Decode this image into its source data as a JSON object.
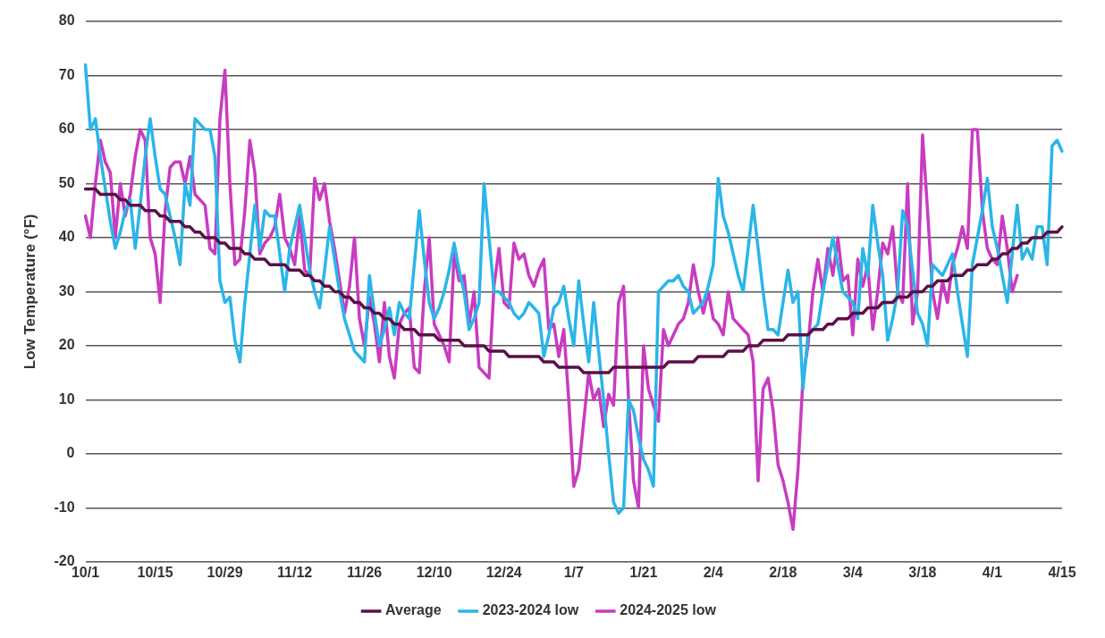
{
  "chart_data": {
    "type": "line",
    "ylabel": "Low Temperature (°F)",
    "categories": [
      "10/1",
      null,
      null,
      null,
      null,
      null,
      null,
      null,
      null,
      null,
      null,
      null,
      null,
      null,
      "10/15",
      null,
      null,
      null,
      null,
      null,
      null,
      null,
      null,
      null,
      null,
      null,
      null,
      null,
      "10/29",
      null,
      null,
      null,
      null,
      null,
      null,
      null,
      null,
      null,
      null,
      null,
      null,
      null,
      "11/12",
      null,
      null,
      null,
      null,
      null,
      null,
      null,
      null,
      null,
      null,
      null,
      null,
      null,
      "11/26",
      null,
      null,
      null,
      null,
      null,
      null,
      null,
      null,
      null,
      null,
      null,
      null,
      null,
      "12/10",
      null,
      null,
      null,
      null,
      null,
      null,
      null,
      null,
      null,
      null,
      null,
      null,
      null,
      "12/24",
      null,
      null,
      null,
      null,
      null,
      null,
      null,
      null,
      null,
      null,
      null,
      null,
      null,
      "1/7",
      null,
      null,
      null,
      null,
      null,
      null,
      null,
      null,
      null,
      null,
      null,
      null,
      null,
      "1/21",
      null,
      null,
      null,
      null,
      null,
      null,
      null,
      null,
      null,
      null,
      null,
      null,
      null,
      "2/4",
      null,
      null,
      null,
      null,
      null,
      null,
      null,
      null,
      null,
      null,
      null,
      null,
      null,
      "2/18",
      null,
      null,
      null,
      null,
      null,
      null,
      null,
      null,
      null,
      null,
      null,
      null,
      null,
      "3/4",
      null,
      null,
      null,
      null,
      null,
      null,
      null,
      null,
      null,
      null,
      null,
      null,
      null,
      "3/18",
      null,
      null,
      null,
      null,
      null,
      null,
      null,
      null,
      null,
      null,
      null,
      null,
      null,
      "4/1",
      null,
      null,
      null,
      null,
      null,
      null,
      null,
      null,
      null,
      null,
      null,
      null,
      null,
      "4/15"
    ],
    "ylim": [
      -20,
      80
    ],
    "yticks": [
      -20,
      -10,
      0,
      10,
      20,
      30,
      40,
      50,
      60,
      70,
      80
    ],
    "grid": "y",
    "legend": "bottom",
    "marker": "none",
    "line_style": "solid",
    "series": [
      {
        "name": "Average",
        "color": "#5b1047",
        "values": [
          49,
          49,
          49,
          48,
          48,
          48,
          48,
          47,
          47,
          46,
          46,
          46,
          45,
          45,
          45,
          44,
          44,
          43,
          43,
          43,
          42,
          42,
          41,
          41,
          40,
          40,
          40,
          39,
          39,
          38,
          38,
          38,
          37,
          37,
          36,
          36,
          36,
          35,
          35,
          35,
          35,
          34,
          34,
          34,
          33,
          33,
          32,
          32,
          31,
          31,
          30,
          30,
          29,
          29,
          28,
          28,
          27,
          27,
          26,
          26,
          25,
          25,
          24,
          24,
          23,
          23,
          23,
          22,
          22,
          22,
          22,
          21,
          21,
          21,
          21,
          21,
          20,
          20,
          20,
          20,
          20,
          19,
          19,
          19,
          19,
          18,
          18,
          18,
          18,
          18,
          18,
          18,
          17,
          17,
          17,
          16,
          16,
          16,
          16,
          16,
          15,
          15,
          15,
          15,
          15,
          15,
          16,
          16,
          16,
          16,
          16,
          16,
          16,
          16,
          16,
          16,
          16,
          17,
          17,
          17,
          17,
          17,
          17,
          18,
          18,
          18,
          18,
          18,
          18,
          19,
          19,
          19,
          19,
          20,
          20,
          20,
          21,
          21,
          21,
          21,
          21,
          22,
          22,
          22,
          22,
          22,
          23,
          23,
          23,
          24,
          24,
          25,
          25,
          25,
          26,
          26,
          26,
          27,
          27,
          27,
          28,
          28,
          28,
          29,
          29,
          29,
          30,
          30,
          30,
          31,
          31,
          32,
          32,
          32,
          33,
          33,
          33,
          34,
          34,
          35,
          35,
          35,
          36,
          36,
          37,
          37,
          38,
          38,
          39,
          39,
          40,
          40,
          40,
          41,
          41,
          41,
          42
        ]
      },
      {
        "name": "2023-2024 low",
        "color": "#2bb5e8",
        "values": [
          72,
          60,
          62,
          55,
          49,
          43,
          38,
          41,
          45,
          47,
          38,
          46,
          55,
          62,
          55,
          49,
          48,
          44,
          40,
          35,
          50,
          46,
          62,
          61,
          60,
          60,
          55,
          32,
          28,
          29,
          21,
          17,
          28,
          37,
          46,
          38,
          45,
          44,
          44,
          37,
          30,
          38,
          42,
          46,
          40,
          34,
          30,
          27,
          34,
          42,
          36,
          30,
          25,
          22,
          19,
          18,
          17,
          33,
          26,
          20,
          23,
          27,
          22,
          28,
          26,
          25,
          35,
          45,
          36,
          28,
          25,
          27,
          30,
          34,
          39,
          34,
          30,
          23,
          25,
          28,
          50,
          40,
          30,
          30,
          29,
          28,
          26,
          25,
          26,
          28,
          27,
          26,
          18,
          22,
          27,
          28,
          31,
          25,
          20,
          32,
          24,
          17,
          28,
          19,
          10,
          0,
          -9,
          -11,
          -10,
          10,
          8,
          3,
          -1,
          -3,
          -6,
          30,
          31,
          32,
          32,
          33,
          31,
          30,
          26,
          27,
          28,
          31,
          35,
          51,
          44,
          41,
          37,
          33,
          30,
          38,
          46,
          38,
          30,
          23,
          23,
          22,
          28,
          34,
          28,
          30,
          12,
          22,
          23,
          24,
          30,
          35,
          40,
          35,
          30,
          29,
          28,
          25,
          38,
          33,
          46,
          39,
          33,
          21,
          25,
          30,
          45,
          42,
          34,
          26,
          24,
          20,
          35,
          34,
          33,
          35,
          37,
          30,
          24,
          18,
          35,
          40,
          45,
          51,
          42,
          38,
          33,
          28,
          37,
          46,
          36,
          38,
          36,
          42,
          42,
          35,
          57,
          58,
          56
        ]
      },
      {
        "name": "2024-2025 low",
        "color": "#c83cc0",
        "values": [
          44,
          40,
          50,
          58,
          54,
          52,
          40,
          50,
          44,
          48,
          55,
          60,
          58,
          40,
          37,
          28,
          45,
          53,
          54,
          54,
          50,
          55,
          48,
          47,
          46,
          38,
          37,
          62,
          71,
          50,
          35,
          36,
          45,
          58,
          52,
          37,
          39,
          40,
          42,
          48,
          40,
          38,
          35,
          44,
          34,
          33,
          51,
          47,
          50,
          43,
          38,
          32,
          26,
          31,
          40,
          25,
          20,
          29,
          24,
          17,
          28,
          18,
          14,
          24,
          26,
          27,
          16,
          15,
          30,
          40,
          24,
          22,
          20,
          17,
          37,
          32,
          33,
          24,
          30,
          16,
          15,
          14,
          31,
          38,
          28,
          27,
          39,
          36,
          37,
          33,
          31,
          34,
          36,
          23,
          24,
          18,
          23,
          10,
          -6,
          -3,
          6,
          15,
          10,
          12,
          5,
          11,
          9,
          28,
          31,
          10,
          -5,
          -10,
          20,
          12,
          9,
          6,
          23,
          20,
          22,
          24,
          25,
          28,
          35,
          30,
          26,
          30,
          25,
          24,
          22,
          30,
          25,
          24,
          23,
          22,
          17,
          -5,
          12,
          14,
          8,
          -2,
          -5,
          -9,
          -14,
          -3,
          14,
          20,
          30,
          36,
          30,
          38,
          33,
          40,
          32,
          33,
          22,
          36,
          31,
          35,
          23,
          30,
          39,
          37,
          42,
          30,
          28,
          50,
          24,
          30,
          59,
          45,
          30,
          25,
          32,
          28,
          35,
          38,
          42,
          38,
          60,
          60,
          45,
          38,
          36,
          35,
          44,
          38,
          30,
          33,
          null,
          null,
          null,
          null,
          null,
          null,
          null,
          null,
          null
        ]
      }
    ]
  }
}
